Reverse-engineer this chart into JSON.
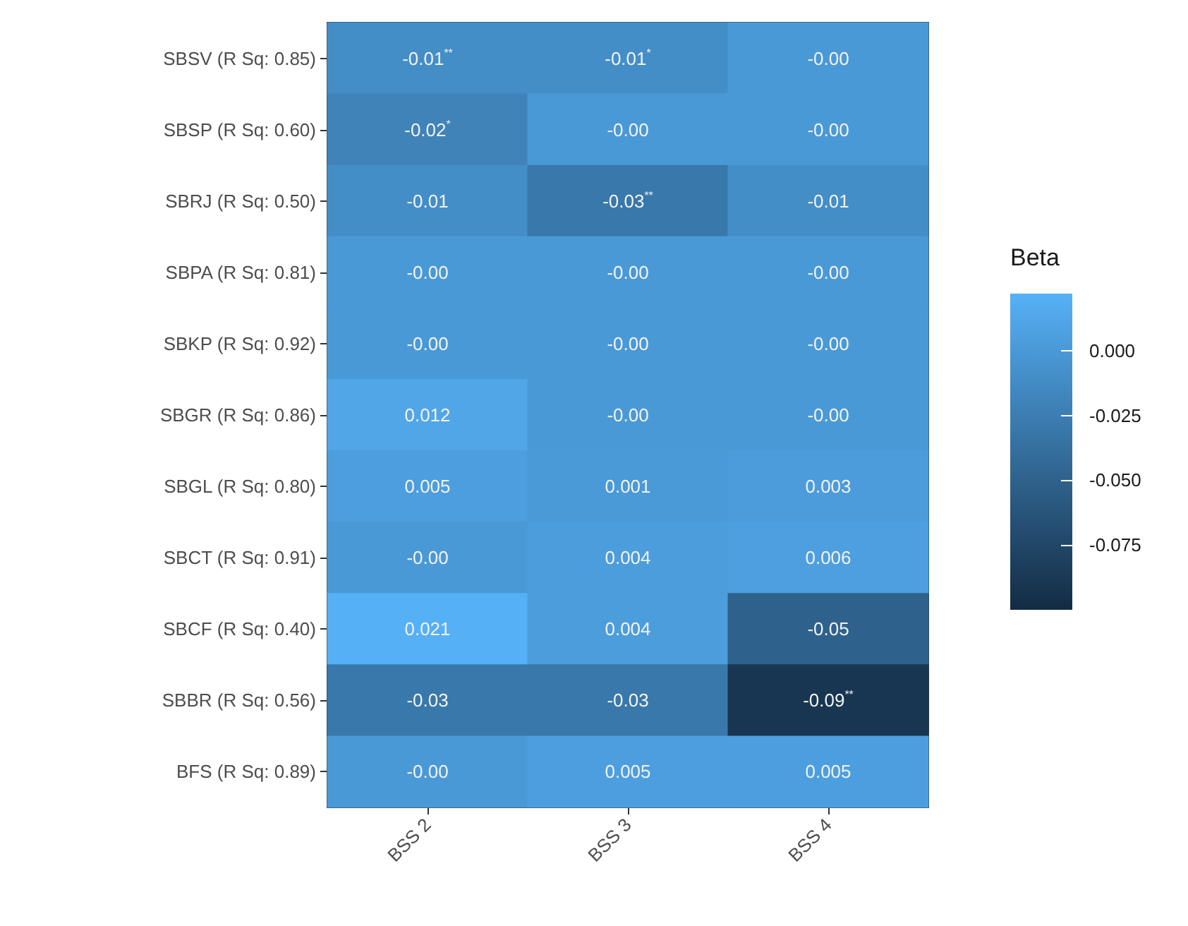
{
  "chart_data": {
    "type": "heatmap",
    "categories": [
      "BSS 2",
      "BSS 3",
      "BSS 4"
    ],
    "y_categories": [
      "SBSV (R Sq: 0.85)",
      "SBSP (R Sq: 0.60)",
      "SBRJ (R Sq: 0.50)",
      "SBPA (R Sq: 0.81)",
      "SBKP (R Sq: 0.92)",
      "SBGR (R Sq: 0.86)",
      "SBGL (R Sq: 0.80)",
      "SBCT (R Sq: 0.91)",
      "SBCF (R Sq: 0.40)",
      "SBBR (R Sq: 0.56)",
      "BFS (R Sq: 0.89)"
    ],
    "cells": [
      [
        -0.01,
        -0.01,
        -0.0
      ],
      [
        -0.02,
        -0.0,
        -0.0
      ],
      [
        -0.01,
        -0.03,
        -0.01
      ],
      [
        -0.0,
        -0.0,
        -0.0
      ],
      [
        -0.0,
        -0.0,
        -0.0
      ],
      [
        0.012,
        -0.0,
        -0.0
      ],
      [
        0.005,
        0.001,
        0.003
      ],
      [
        -0.0,
        0.004,
        0.006
      ],
      [
        0.021,
        0.004,
        -0.05
      ],
      [
        -0.03,
        -0.03,
        -0.09
      ],
      [
        -0.0,
        0.005,
        0.005
      ]
    ],
    "cell_labels": [
      [
        "-0.01$^{**}$",
        "-0.01$^{*}$",
        "-0.00"
      ],
      [
        "-0.02$^{*}$",
        "-0.00",
        "-0.00"
      ],
      [
        "-0.01",
        "-0.03$^{**}$",
        "-0.01"
      ],
      [
        "-0.00",
        "-0.00",
        "-0.00"
      ],
      [
        "-0.00",
        "-0.00",
        "-0.00"
      ],
      [
        "0.012",
        "-0.00",
        "-0.00"
      ],
      [
        "0.005",
        "0.001",
        "0.003"
      ],
      [
        "-0.00",
        "0.004",
        "0.006"
      ],
      [
        "0.021",
        "0.004",
        "-0.05"
      ],
      [
        "-0.03",
        "-0.03",
        "-0.09$^{**}$"
      ],
      [
        "-0.00",
        "0.005",
        "0.005"
      ]
    ],
    "clabel": "Beta",
    "clim": [
      -0.1,
      0.022
    ],
    "cticks": [
      {
        "value": 0,
        "label": "0.000"
      },
      {
        "value": -0.025,
        "label": "-0.025"
      },
      {
        "value": -0.05,
        "label": "-0.050"
      },
      {
        "value": -0.075,
        "label": "-0.075"
      }
    ],
    "colors": [
      "#132b43",
      "#56b1f7"
    ]
  }
}
